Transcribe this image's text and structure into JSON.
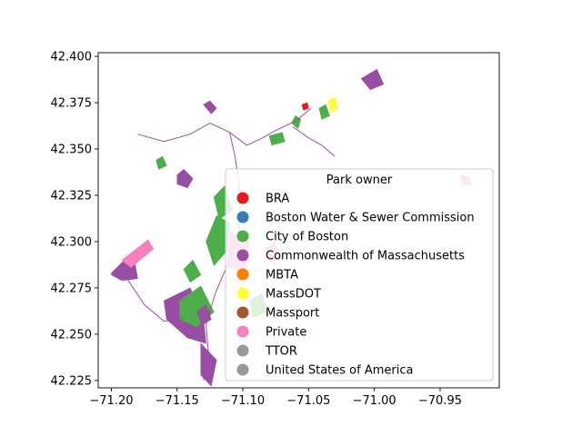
{
  "chart_data": {
    "type": "map",
    "xlim": [
      -71.21,
      -70.905
    ],
    "ylim": [
      42.221,
      42.402
    ],
    "x_ticks": [
      -71.2,
      -71.15,
      -71.1,
      -71.05,
      -71.0,
      -70.95
    ],
    "x_tick_labels": [
      "−71.20",
      "−71.15",
      "−71.10",
      "−71.05",
      "−71.00",
      "−70.95"
    ],
    "y_ticks": [
      42.225,
      42.25,
      42.275,
      42.3,
      42.325,
      42.35,
      42.375,
      42.4
    ],
    "y_tick_labels": [
      "42.225",
      "42.250",
      "42.275",
      "42.300",
      "42.325",
      "42.350",
      "42.375",
      "42.400"
    ],
    "grid": false,
    "legend": {
      "title": "Park owner",
      "placement": "center-right",
      "entries": [
        {
          "label": "BRA",
          "color": "#e41a1c"
        },
        {
          "label": "Boston Water & Sewer Commission",
          "color": "#377eb8"
        },
        {
          "label": "City of Boston",
          "color": "#4daf4a"
        },
        {
          "label": "Commonwealth of Massachusetts",
          "color": "#984ea3"
        },
        {
          "label": "MBTA",
          "color": "#ff7f00"
        },
        {
          "label": "MassDOT",
          "color": "#ffff33"
        },
        {
          "label": "Massport",
          "color": "#a65628"
        },
        {
          "label": "Private",
          "color": "#f781bf"
        },
        {
          "label": "TTOR",
          "color": "#999999"
        },
        {
          "label": "United States of America",
          "color": "#999999"
        }
      ]
    },
    "parks": [
      {
        "owner": "Commonwealth of Massachusetts",
        "color": "#984ea3",
        "coords": [
          [
            -71.2,
            42.283
          ],
          [
            -71.19,
            42.29
          ],
          [
            -71.182,
            42.288
          ],
          [
            -71.18,
            42.28
          ],
          [
            -71.192,
            42.279
          ],
          [
            -71.2,
            42.282
          ]
        ]
      },
      {
        "owner": "Private",
        "color": "#f781bf",
        "coords": [
          [
            -71.192,
            42.29
          ],
          [
            -71.172,
            42.301
          ],
          [
            -71.168,
            42.296
          ],
          [
            -71.185,
            42.286
          ]
        ]
      },
      {
        "owner": "Commonwealth of Massachusetts",
        "color": "#984ea3",
        "coords": [
          [
            -71.16,
            42.268
          ],
          [
            -71.14,
            42.275
          ],
          [
            -71.13,
            42.258
          ],
          [
            -71.128,
            42.245
          ],
          [
            -71.142,
            42.248
          ],
          [
            -71.158,
            42.258
          ]
        ]
      },
      {
        "owner": "City of Boston",
        "color": "#4daf4a",
        "coords": [
          [
            -71.148,
            42.268
          ],
          [
            -71.132,
            42.276
          ],
          [
            -71.122,
            42.262
          ],
          [
            -71.135,
            42.254
          ],
          [
            -71.148,
            42.258
          ]
        ]
      },
      {
        "owner": "Commonwealth of Massachusetts",
        "color": "#984ea3",
        "coords": [
          [
            -71.132,
            42.245
          ],
          [
            -71.12,
            42.236
          ],
          [
            -71.124,
            42.222
          ],
          [
            -71.132,
            42.228
          ]
        ]
      },
      {
        "owner": "Commonwealth of Massachusetts",
        "color": "#984ea3",
        "coords": [
          [
            -71.15,
            42.336
          ],
          [
            -71.145,
            42.339
          ],
          [
            -71.138,
            42.334
          ],
          [
            -71.142,
            42.329
          ],
          [
            -71.15,
            42.331
          ]
        ]
      },
      {
        "owner": "City of Boston",
        "color": "#4daf4a",
        "coords": [
          [
            -71.128,
            42.3
          ],
          [
            -71.12,
            42.314
          ],
          [
            -71.11,
            42.31
          ],
          [
            -71.112,
            42.295
          ],
          [
            -71.122,
            42.287
          ]
        ]
      },
      {
        "owner": "Private",
        "color": "#f781bf",
        "coords": [
          [
            -71.11,
            42.305
          ],
          [
            -71.095,
            42.3
          ],
          [
            -71.098,
            42.285
          ],
          [
            -71.112,
            42.286
          ]
        ]
      },
      {
        "owner": "City of Boston",
        "color": "#4daf4a",
        "coords": [
          [
            -71.122,
            42.324
          ],
          [
            -71.114,
            42.33
          ],
          [
            -71.108,
            42.317
          ],
          [
            -71.118,
            42.312
          ]
        ]
      },
      {
        "owner": "Commonwealth of Massachusetts",
        "color": "#984ea3",
        "coords": [
          [
            -71.13,
            42.374
          ],
          [
            -71.125,
            42.376
          ],
          [
            -71.12,
            42.372
          ],
          [
            -71.124,
            42.369
          ]
        ]
      },
      {
        "owner": "City of Boston",
        "color": "#4daf4a",
        "coords": [
          [
            -71.06,
            42.368
          ],
          [
            -71.056,
            42.366
          ],
          [
            -71.058,
            42.361
          ],
          [
            -71.063,
            42.364
          ]
        ]
      },
      {
        "owner": "City of Boston",
        "color": "#4daf4a",
        "coords": [
          [
            -71.08,
            42.357
          ],
          [
            -71.07,
            42.359
          ],
          [
            -71.068,
            42.354
          ],
          [
            -71.078,
            42.352
          ]
        ]
      },
      {
        "owner": "Commonwealth of Massachusetts",
        "color": "#984ea3",
        "coords": [
          [
            -71.01,
            42.388
          ],
          [
            -70.998,
            42.393
          ],
          [
            -70.993,
            42.385
          ],
          [
            -71.003,
            42.382
          ]
        ]
      },
      {
        "owner": "MassDOT",
        "color": "#ffff33",
        "coords": [
          [
            -71.035,
            42.376
          ],
          [
            -71.03,
            42.378
          ],
          [
            -71.028,
            42.372
          ],
          [
            -71.033,
            42.37
          ]
        ]
      },
      {
        "owner": "City of Boston",
        "color": "#4daf4a",
        "coords": [
          [
            -71.042,
            42.372
          ],
          [
            -71.037,
            42.374
          ],
          [
            -71.034,
            42.368
          ],
          [
            -71.04,
            42.366
          ]
        ]
      },
      {
        "owner": "BRA",
        "color": "#e41a1c",
        "coords": [
          [
            -71.055,
            42.374
          ],
          [
            -71.051,
            42.375
          ],
          [
            -71.05,
            42.372
          ],
          [
            -71.054,
            42.371
          ]
        ]
      },
      {
        "owner": "City of Boston",
        "color": "#4daf4a",
        "coords": [
          [
            -71.095,
            42.268
          ],
          [
            -71.085,
            42.272
          ],
          [
            -71.082,
            42.262
          ],
          [
            -71.092,
            42.259
          ]
        ]
      },
      {
        "owner": "City of Boston",
        "color": "#4daf4a",
        "coords": [
          [
            -71.145,
            42.285
          ],
          [
            -71.138,
            42.29
          ],
          [
            -71.132,
            42.282
          ],
          [
            -71.14,
            42.278
          ]
        ]
      },
      {
        "owner": "Private",
        "color": "#f781bf",
        "coords": [
          [
            -71.082,
            42.296
          ],
          [
            -71.076,
            42.3
          ],
          [
            -71.072,
            42.292
          ],
          [
            -71.079,
            42.288
          ]
        ]
      },
      {
        "owner": "City of Boston",
        "color": "#4daf4a",
        "coords": [
          [
            -71.166,
            42.344
          ],
          [
            -71.161,
            42.346
          ],
          [
            -71.158,
            42.341
          ],
          [
            -71.164,
            42.339
          ]
        ]
      },
      {
        "owner": "Private",
        "color": "#f781bf",
        "coords": [
          [
            -70.935,
            42.336
          ],
          [
            -70.928,
            42.335
          ],
          [
            -70.926,
            42.33
          ],
          [
            -70.933,
            42.331
          ]
        ]
      },
      {
        "owner": "Commonwealth of Massachusetts",
        "color": "#984ea3",
        "coords": [
          [
            -71.135,
            42.262
          ],
          [
            -71.128,
            42.266
          ],
          [
            -71.124,
            42.258
          ],
          [
            -71.131,
            42.255
          ]
        ]
      }
    ],
    "lines": [
      {
        "owner": "Commonwealth of Massachusetts",
        "color": "#984ea3",
        "coords": [
          [
            -71.18,
            42.358
          ],
          [
            -71.16,
            42.354
          ],
          [
            -71.14,
            42.358
          ],
          [
            -71.125,
            42.364
          ],
          [
            -71.11,
            42.359
          ],
          [
            -71.097,
            42.352
          ],
          [
            -71.085,
            42.356
          ],
          [
            -71.075,
            42.36
          ],
          [
            -71.06,
            42.365
          ],
          [
            -71.048,
            42.372
          ]
        ]
      },
      {
        "owner": "Commonwealth of Massachusetts",
        "color": "#984ea3",
        "coords": [
          [
            -71.11,
            42.359
          ],
          [
            -71.106,
            42.346
          ],
          [
            -71.103,
            42.332
          ],
          [
            -71.102,
            42.316
          ],
          [
            -71.104,
            42.3
          ],
          [
            -71.112,
            42.287
          ],
          [
            -71.121,
            42.272
          ],
          [
            -71.128,
            42.255
          ],
          [
            -71.126,
            42.238
          ],
          [
            -71.13,
            42.225
          ]
        ]
      },
      {
        "owner": "Commonwealth of Massachusetts",
        "color": "#984ea3",
        "coords": [
          [
            -71.19,
            42.282
          ],
          [
            -71.175,
            42.266
          ],
          [
            -71.16,
            42.257
          ],
          [
            -71.145,
            42.258
          ]
        ]
      },
      {
        "owner": "Commonwealth of Massachusetts",
        "color": "#984ea3",
        "coords": [
          [
            -71.062,
            42.362
          ],
          [
            -71.05,
            42.356
          ],
          [
            -71.04,
            42.352
          ],
          [
            -71.03,
            42.346
          ]
        ]
      }
    ]
  }
}
